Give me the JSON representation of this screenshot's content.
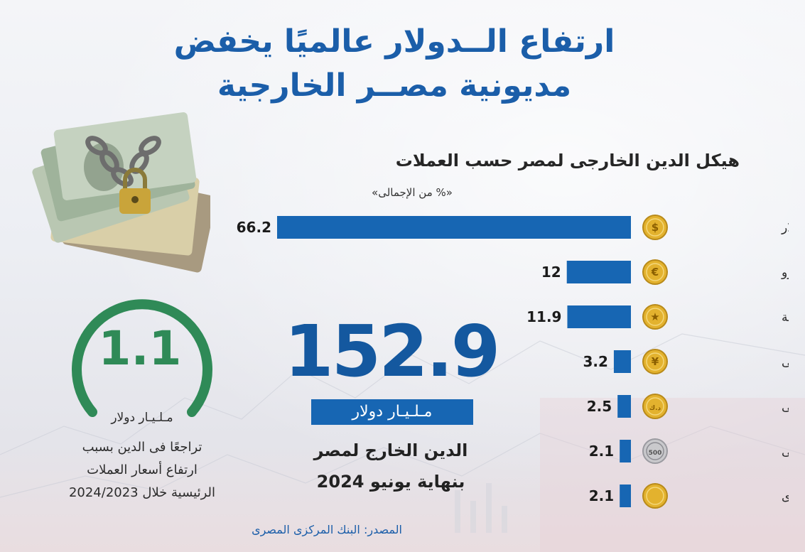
{
  "headline": {
    "line1": "ارتفاع الــدولار عالميًا يخفض",
    "line2": "مديونية مصــر الخارجية"
  },
  "colors": {
    "accent_blue": "#1b5ea9",
    "bar_blue": "#1766b3",
    "ring_green": "#2f8a57",
    "coin_gold": "#e3b22e"
  },
  "chart_data": {
    "type": "bar",
    "orientation": "horizontal",
    "title": "هيكل الدين الخارجى لمصر حسب العملات",
    "subtitle": "«% من الإجمالى»",
    "categories": [
      "الـــــدولار",
      "يــــورو",
      "وحدات سحب خاصة",
      "يــوان صينــى",
      "دينـار كويـتـى",
      "يـن يابانـى",
      "عـملات أخرى"
    ],
    "values": [
      66.2,
      12,
      11.9,
      3.2,
      2.5,
      2.1,
      2.1
    ],
    "value_labels": [
      "66.2",
      "12",
      "11.9",
      "3.2",
      "2.5",
      "2.1",
      "2.1"
    ],
    "icons": [
      "dollar-coin-icon",
      "euro-coin-icon",
      "sdr-star-coin-icon",
      "yuan-coin-icon",
      "dinar-coin-icon",
      "yen-500-coin-icon",
      "generic-coin-icon"
    ],
    "coin_glyphs": [
      "$",
      "€",
      "★",
      "¥",
      "د.ك",
      "500",
      ""
    ],
    "xlim": [
      0,
      66.2
    ]
  },
  "total_debt": {
    "value": "152.9",
    "unit": "مـلـيـار دولار",
    "desc_line1": "الدين الخارج لمصر",
    "desc_line2": "بنهاية يونيو 2024"
  },
  "decline": {
    "value": "1.1",
    "unit": "مـلـيـار دولار",
    "desc_line1": "تراجعًا فى الدين بسبب",
    "desc_line2": "ارتفاع أسعار العملات",
    "desc_line3": "الرئيسية خلال 2024/2023"
  },
  "source": "المصدر: البنك المركزى المصرى"
}
